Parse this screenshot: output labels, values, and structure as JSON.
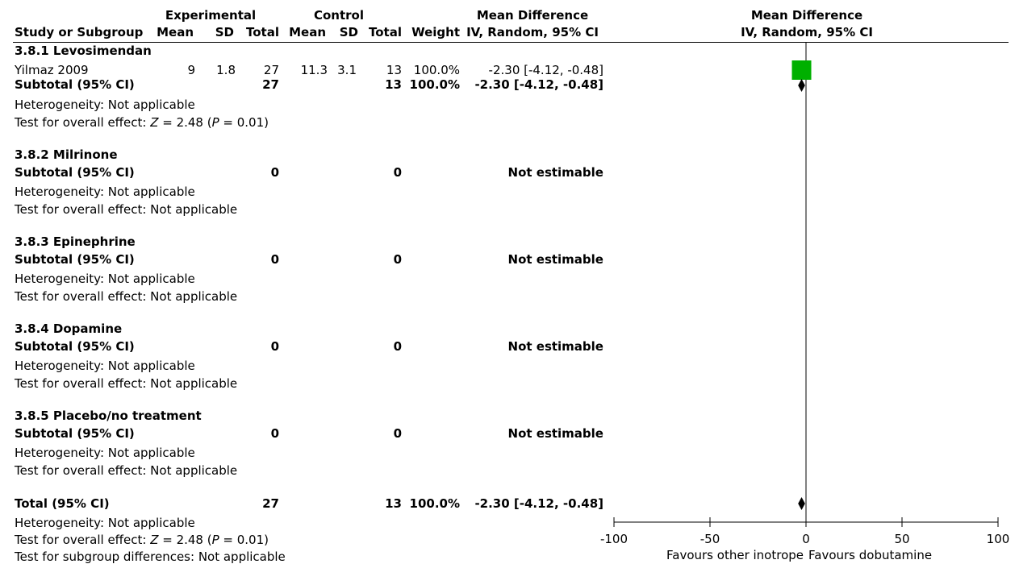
{
  "headers": {
    "study": "Study or Subgroup",
    "experimental": "Experimental",
    "control": "Control",
    "mean": "Mean",
    "sd": "SD",
    "total": "Total",
    "weight": "Weight",
    "md_title": "Mean Difference",
    "md_method": "IV, Random, 95% CI"
  },
  "subgroups": [
    {
      "name": "3.8.1 Levosimendan",
      "study": {
        "name": "Yilmaz 2009",
        "exp_mean": "9",
        "exp_sd": "1.8",
        "exp_total": "27",
        "ctl_mean": "11.3",
        "ctl_sd": "3.1",
        "ctl_total": "13",
        "weight": "100.0%",
        "md": "-2.30 [-4.12, -0.48]"
      },
      "subtotal_label": "Subtotal (95% CI)",
      "subtotal_exp": "27",
      "subtotal_ctl": "13",
      "subtotal_weight": "100.0%",
      "subtotal_md": "-2.30 [-4.12, -0.48]",
      "heterogeneity": "Heterogeneity: Not applicable",
      "overall_prefix": "Test for overall effect: ",
      "overall_z": "Z",
      "overall_mid": " = 2.48 (",
      "overall_p": "P",
      "overall_end": " = 0.01)"
    },
    {
      "name": "3.8.2 Milrinone",
      "subtotal_label": "Subtotal (95% CI)",
      "subtotal_exp": "0",
      "subtotal_ctl": "0",
      "subtotal_md": "Not estimable",
      "heterogeneity": "Heterogeneity: Not applicable",
      "overall": "Test for overall effect: Not applicable"
    },
    {
      "name": "3.8.3 Epinephrine",
      "subtotal_label": "Subtotal (95% CI)",
      "subtotal_exp": "0",
      "subtotal_ctl": "0",
      "subtotal_md": "Not estimable",
      "heterogeneity": "Heterogeneity: Not applicable",
      "overall": "Test for overall effect: Not applicable"
    },
    {
      "name": "3.8.4 Dopamine",
      "subtotal_label": "Subtotal (95% CI)",
      "subtotal_exp": "0",
      "subtotal_ctl": "0",
      "subtotal_md": "Not estimable",
      "heterogeneity": "Heterogeneity: Not applicable",
      "overall": "Test for overall effect: Not applicable"
    },
    {
      "name": "3.8.5 Placebo/no treatment",
      "subtotal_label": "Subtotal (95% CI)",
      "subtotal_exp": "0",
      "subtotal_ctl": "0",
      "subtotal_md": "Not estimable",
      "heterogeneity": "Heterogeneity: Not applicable",
      "overall": "Test for overall effect: Not applicable"
    }
  ],
  "total": {
    "label": "Total (95% CI)",
    "exp": "27",
    "ctl": "13",
    "weight": "100.0%",
    "md": "-2.30 [-4.12, -0.48]",
    "heterogeneity": "Heterogeneity: Not applicable",
    "overall_prefix": "Test for overall effect: ",
    "overall_z": "Z",
    "overall_mid": " = 2.48 (",
    "overall_p": "P",
    "overall_end": " = 0.01)",
    "subgroup_diff": "Test for subgroup differences: Not applicable"
  },
  "colors": {
    "study_marker": "#00b000",
    "diamond": "#000000"
  },
  "chart_data": {
    "type": "forest",
    "title": "Mean Difference",
    "subtitle": "IV, Random, 95% CI",
    "xlim": [
      -100,
      100
    ],
    "ticks": [
      -100,
      -50,
      0,
      50,
      100
    ],
    "tick_labels": [
      "-100",
      "-50",
      "0",
      "50",
      "100"
    ],
    "null_line": 0,
    "favours_left": "Favours other inotrope",
    "favours_right": "Favours dobutamine",
    "studies": [
      {
        "name": "Yilmaz 2009",
        "md": -2.3,
        "ci": [
          -4.12,
          -0.48
        ],
        "weight": 100.0
      }
    ],
    "summaries": [
      {
        "name": "3.8.1 Levosimendan Subtotal",
        "md": -2.3,
        "ci": [
          -4.12,
          -0.48
        ]
      },
      {
        "name": "Total",
        "md": -2.3,
        "ci": [
          -4.12,
          -0.48
        ]
      }
    ]
  }
}
